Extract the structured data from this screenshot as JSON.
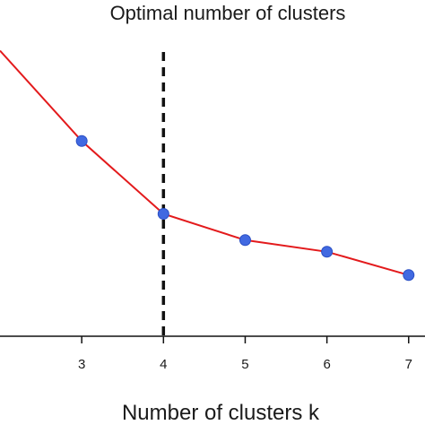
{
  "chart_data": {
    "type": "line",
    "title": "Optimal number of clusters",
    "xlabel": "Number of clusters k",
    "ylabel": "",
    "xlim": [
      2.0,
      7.2
    ],
    "ylim": [
      0,
      1
    ],
    "x_ticks": [
      "3",
      "4",
      "5",
      "6",
      "7"
    ],
    "series": [
      {
        "x": [
          2,
          3,
          4,
          5,
          6,
          7
        ],
        "y": [
          0.98,
          0.67,
          0.42,
          0.33,
          0.29,
          0.21
        ],
        "color": "#e31a1c",
        "marker_color": "#4169e1"
      }
    ],
    "optimal_k": 4,
    "optimal_line_color": "#111111",
    "grid": false
  }
}
